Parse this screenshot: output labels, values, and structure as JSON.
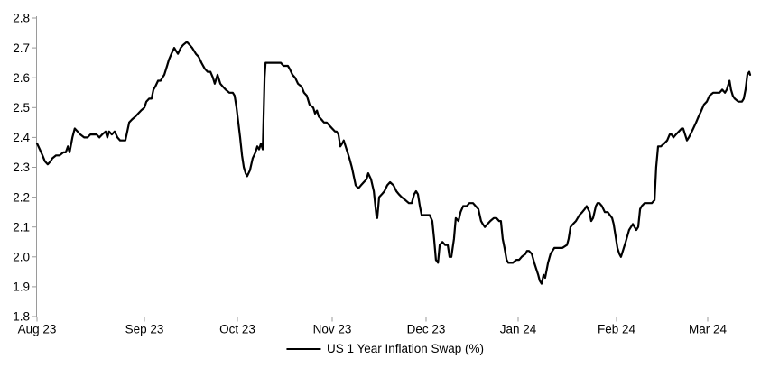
{
  "figure": {
    "background": "#ffffff",
    "axis_color": "#9a9a9a",
    "text_color": "#000000"
  },
  "chart_data": {
    "type": "line",
    "title": "",
    "grid": false,
    "x_axis": {
      "tick_labels": [
        "Aug 23",
        "Sep 23",
        "Oct 23",
        "Nov 23",
        "Dec 23",
        "Jan 24",
        "Feb 24",
        "Mar 24"
      ],
      "x_encoding": "calendar days since 2023-08-01 (0 = Aug 1 2023)",
      "tick_day_boundaries": [
        0,
        31,
        61,
        92,
        122,
        153,
        184,
        213,
        244
      ]
    },
    "y_axis": {
      "min": 1.8,
      "max": 2.8,
      "step": 0.1,
      "tick_values": [
        1.8,
        1.9,
        2.0,
        2.1,
        2.2,
        2.3,
        2.4,
        2.5,
        2.6,
        2.7,
        2.8
      ],
      "tick_labels": [
        "1.8",
        "1.9",
        "2.0",
        "2.1",
        "2.2",
        "2.3",
        "2.4",
        "2.5",
        "2.6",
        "2.7",
        "2.8"
      ]
    },
    "legend": {
      "position": "bottom-center",
      "entries": [
        "US 1 Year Inflation Swap (%)"
      ]
    },
    "series": [
      {
        "name": "US 1 Year Inflation Swap (%)",
        "color": "#000000",
        "points": [
          [
            0,
            2.38
          ],
          [
            0.8,
            2.36
          ],
          [
            1.6,
            2.34
          ],
          [
            2.3,
            2.32
          ],
          [
            3.1,
            2.31
          ],
          [
            3.9,
            2.32
          ],
          [
            4.4,
            2.33
          ],
          [
            5.5,
            2.34
          ],
          [
            6.5,
            2.34
          ],
          [
            7.6,
            2.35
          ],
          [
            8.3,
            2.35
          ],
          [
            8.9,
            2.37
          ],
          [
            9.4,
            2.35
          ],
          [
            10.2,
            2.4
          ],
          [
            10.9,
            2.43
          ],
          [
            11.7,
            2.42
          ],
          [
            12.5,
            2.41
          ],
          [
            13.6,
            2.4
          ],
          [
            14.6,
            2.4
          ],
          [
            15.4,
            2.41
          ],
          [
            16.4,
            2.41
          ],
          [
            17.2,
            2.41
          ],
          [
            18.0,
            2.4
          ],
          [
            18.8,
            2.41
          ],
          [
            19.8,
            2.42
          ],
          [
            20.3,
            2.4
          ],
          [
            20.8,
            2.42
          ],
          [
            21.6,
            2.41
          ],
          [
            22.4,
            2.42
          ],
          [
            23.2,
            2.4
          ],
          [
            24.0,
            2.39
          ],
          [
            24.7,
            2.39
          ],
          [
            25.5,
            2.39
          ],
          [
            26.6,
            2.45
          ],
          [
            27.4,
            2.46
          ],
          [
            28.4,
            2.47
          ],
          [
            29.2,
            2.48
          ],
          [
            30.0,
            2.49
          ],
          [
            31.0,
            2.5
          ],
          [
            31.6,
            2.52
          ],
          [
            32.5,
            2.53
          ],
          [
            33.3,
            2.53
          ],
          [
            33.9,
            2.56
          ],
          [
            34.5,
            2.57
          ],
          [
            35.4,
            2.59
          ],
          [
            36.2,
            2.59
          ],
          [
            36.8,
            2.6
          ],
          [
            37.4,
            2.61
          ],
          [
            38.3,
            2.64
          ],
          [
            38.9,
            2.66
          ],
          [
            39.7,
            2.68
          ],
          [
            40.6,
            2.7
          ],
          [
            41.2,
            2.69
          ],
          [
            41.8,
            2.68
          ],
          [
            42.7,
            2.7
          ],
          [
            43.5,
            2.71
          ],
          [
            44.7,
            2.72
          ],
          [
            45.6,
            2.71
          ],
          [
            46.4,
            2.7
          ],
          [
            47.6,
            2.68
          ],
          [
            48.5,
            2.67
          ],
          [
            49.4,
            2.65
          ],
          [
            50.5,
            2.63
          ],
          [
            51.4,
            2.62
          ],
          [
            52.3,
            2.62
          ],
          [
            53.1,
            2.6
          ],
          [
            53.7,
            2.58
          ],
          [
            54.6,
            2.61
          ],
          [
            55.5,
            2.58
          ],
          [
            56.3,
            2.57
          ],
          [
            57.2,
            2.56
          ],
          [
            58.4,
            2.55
          ],
          [
            59.5,
            2.55
          ],
          [
            60.1,
            2.54
          ],
          [
            60.7,
            2.5
          ],
          [
            61.3,
            2.45
          ],
          [
            61.9,
            2.4
          ],
          [
            62.5,
            2.34
          ],
          [
            63.1,
            2.3
          ],
          [
            63.7,
            2.28
          ],
          [
            64.2,
            2.27
          ],
          [
            65.1,
            2.29
          ],
          [
            66.0,
            2.33
          ],
          [
            66.9,
            2.35
          ],
          [
            67.5,
            2.37
          ],
          [
            68.1,
            2.36
          ],
          [
            68.7,
            2.38
          ],
          [
            69.3,
            2.36
          ],
          [
            69.9,
            2.6
          ],
          [
            70.2,
            2.65
          ],
          [
            71.0,
            2.65
          ],
          [
            71.9,
            2.65
          ],
          [
            73.1,
            2.65
          ],
          [
            74.3,
            2.65
          ],
          [
            75.2,
            2.65
          ],
          [
            76.1,
            2.64
          ],
          [
            76.9,
            2.64
          ],
          [
            77.5,
            2.64
          ],
          [
            78.1,
            2.63
          ],
          [
            79.0,
            2.61
          ],
          [
            79.9,
            2.6
          ],
          [
            80.8,
            2.58
          ],
          [
            82.0,
            2.57
          ],
          [
            82.8,
            2.55
          ],
          [
            83.7,
            2.54
          ],
          [
            84.6,
            2.51
          ],
          [
            85.8,
            2.5
          ],
          [
            86.4,
            2.48
          ],
          [
            87.0,
            2.49
          ],
          [
            87.6,
            2.47
          ],
          [
            88.5,
            2.46
          ],
          [
            89.3,
            2.45
          ],
          [
            90.2,
            2.45
          ],
          [
            91.1,
            2.44
          ],
          [
            92.0,
            2.43
          ],
          [
            92.9,
            2.42
          ],
          [
            93.4,
            2.42
          ],
          [
            94.0,
            2.41
          ],
          [
            94.6,
            2.37
          ],
          [
            95.2,
            2.38
          ],
          [
            95.7,
            2.39
          ],
          [
            96.6,
            2.36
          ],
          [
            97.5,
            2.33
          ],
          [
            98.3,
            2.3
          ],
          [
            98.9,
            2.27
          ],
          [
            99.5,
            2.24
          ],
          [
            100.4,
            2.23
          ],
          [
            101.2,
            2.24
          ],
          [
            102.1,
            2.25
          ],
          [
            103.0,
            2.26
          ],
          [
            103.5,
            2.28
          ],
          [
            104.4,
            2.26
          ],
          [
            105.3,
            2.22
          ],
          [
            106.1,
            2.14
          ],
          [
            106.4,
            2.13
          ],
          [
            107.0,
            2.2
          ],
          [
            107.9,
            2.21
          ],
          [
            108.7,
            2.22
          ],
          [
            109.6,
            2.24
          ],
          [
            110.5,
            2.25
          ],
          [
            111.6,
            2.24
          ],
          [
            112.5,
            2.22
          ],
          [
            113.3,
            2.21
          ],
          [
            114.2,
            2.2
          ],
          [
            115.4,
            2.19
          ],
          [
            116.5,
            2.18
          ],
          [
            117.4,
            2.18
          ],
          [
            118.2,
            2.21
          ],
          [
            118.8,
            2.22
          ],
          [
            119.4,
            2.21
          ],
          [
            120.0,
            2.17
          ],
          [
            120.6,
            2.14
          ],
          [
            121.4,
            2.14
          ],
          [
            122.3,
            2.14
          ],
          [
            123.2,
            2.14
          ],
          [
            124.1,
            2.12
          ],
          [
            124.7,
            2.06
          ],
          [
            125.3,
            1.99
          ],
          [
            126.0,
            1.98
          ],
          [
            126.6,
            2.04
          ],
          [
            127.5,
            2.05
          ],
          [
            128.4,
            2.04
          ],
          [
            129.3,
            2.04
          ],
          [
            129.9,
            2.0
          ],
          [
            130.5,
            2.0
          ],
          [
            131.4,
            2.06
          ],
          [
            132.0,
            2.13
          ],
          [
            132.9,
            2.12
          ],
          [
            133.6,
            2.15
          ],
          [
            134.5,
            2.17
          ],
          [
            135.7,
            2.17
          ],
          [
            136.6,
            2.18
          ],
          [
            137.8,
            2.18
          ],
          [
            138.7,
            2.17
          ],
          [
            139.6,
            2.16
          ],
          [
            140.5,
            2.12
          ],
          [
            141.1,
            2.11
          ],
          [
            141.8,
            2.1
          ],
          [
            142.7,
            2.11
          ],
          [
            143.6,
            2.12
          ],
          [
            144.8,
            2.13
          ],
          [
            145.7,
            2.13
          ],
          [
            146.6,
            2.12
          ],
          [
            147.2,
            2.12
          ],
          [
            147.8,
            2.06
          ],
          [
            148.4,
            2.03
          ],
          [
            149.1,
            1.99
          ],
          [
            149.7,
            1.98
          ],
          [
            150.3,
            1.98
          ],
          [
            151.2,
            1.98
          ],
          [
            152.4,
            1.99
          ],
          [
            153.3,
            1.99
          ],
          [
            154.1,
            2.0
          ],
          [
            155.3,
            2.01
          ],
          [
            155.8,
            2.02
          ],
          [
            156.4,
            2.02
          ],
          [
            157.3,
            2.01
          ],
          [
            158.1,
            1.98
          ],
          [
            158.7,
            1.96
          ],
          [
            159.3,
            1.94
          ],
          [
            159.8,
            1.92
          ],
          [
            160.4,
            1.91
          ],
          [
            161.0,
            1.94
          ],
          [
            161.5,
            1.93
          ],
          [
            162.4,
            1.98
          ],
          [
            163.2,
            2.01
          ],
          [
            163.8,
            2.02
          ],
          [
            164.4,
            2.03
          ],
          [
            165.5,
            2.03
          ],
          [
            166.9,
            2.03
          ],
          [
            168.4,
            2.04
          ],
          [
            168.9,
            2.06
          ],
          [
            169.5,
            2.1
          ],
          [
            170.3,
            2.11
          ],
          [
            171.2,
            2.12
          ],
          [
            172.3,
            2.14
          ],
          [
            173.2,
            2.15
          ],
          [
            174.0,
            2.16
          ],
          [
            174.6,
            2.17
          ],
          [
            175.5,
            2.15
          ],
          [
            176.0,
            2.12
          ],
          [
            176.6,
            2.13
          ],
          [
            177.5,
            2.17
          ],
          [
            178.0,
            2.18
          ],
          [
            178.6,
            2.18
          ],
          [
            179.4,
            2.17
          ],
          [
            180.3,
            2.15
          ],
          [
            181.2,
            2.15
          ],
          [
            182.6,
            2.13
          ],
          [
            183.1,
            2.11
          ],
          [
            183.7,
            2.07
          ],
          [
            184.3,
            2.03
          ],
          [
            184.9,
            2.01
          ],
          [
            185.4,
            2.0
          ],
          [
            186.0,
            2.02
          ],
          [
            186.9,
            2.05
          ],
          [
            188.0,
            2.09
          ],
          [
            188.6,
            2.1
          ],
          [
            189.2,
            2.11
          ],
          [
            189.7,
            2.1
          ],
          [
            190.3,
            2.09
          ],
          [
            190.9,
            2.1
          ],
          [
            191.5,
            2.16
          ],
          [
            192.0,
            2.17
          ],
          [
            192.9,
            2.18
          ],
          [
            194.0,
            2.18
          ],
          [
            195.2,
            2.18
          ],
          [
            196.1,
            2.19
          ],
          [
            196.6,
            2.3
          ],
          [
            197.2,
            2.37
          ],
          [
            198.1,
            2.37
          ],
          [
            199.2,
            2.38
          ],
          [
            200.1,
            2.39
          ],
          [
            200.9,
            2.41
          ],
          [
            201.5,
            2.41
          ],
          [
            202.1,
            2.4
          ],
          [
            202.9,
            2.41
          ],
          [
            203.8,
            2.42
          ],
          [
            204.7,
            2.43
          ],
          [
            205.2,
            2.43
          ],
          [
            205.8,
            2.41
          ],
          [
            206.4,
            2.39
          ],
          [
            207.0,
            2.4
          ],
          [
            207.5,
            2.41
          ],
          [
            208.4,
            2.43
          ],
          [
            209.3,
            2.45
          ],
          [
            210.1,
            2.47
          ],
          [
            211.0,
            2.49
          ],
          [
            211.8,
            2.51
          ],
          [
            212.7,
            2.52
          ],
          [
            213.6,
            2.54
          ],
          [
            214.8,
            2.55
          ],
          [
            215.7,
            2.55
          ],
          [
            216.9,
            2.55
          ],
          [
            217.8,
            2.56
          ],
          [
            218.7,
            2.55
          ],
          [
            219.3,
            2.56
          ],
          [
            219.9,
            2.58
          ],
          [
            220.2,
            2.59
          ],
          [
            220.7,
            2.56
          ],
          [
            221.3,
            2.54
          ],
          [
            221.9,
            2.53
          ],
          [
            223.1,
            2.52
          ],
          [
            224.3,
            2.52
          ],
          [
            224.9,
            2.53
          ],
          [
            225.5,
            2.56
          ],
          [
            226.1,
            2.61
          ],
          [
            226.7,
            2.62
          ],
          [
            227.0,
            2.61
          ]
        ]
      }
    ]
  }
}
